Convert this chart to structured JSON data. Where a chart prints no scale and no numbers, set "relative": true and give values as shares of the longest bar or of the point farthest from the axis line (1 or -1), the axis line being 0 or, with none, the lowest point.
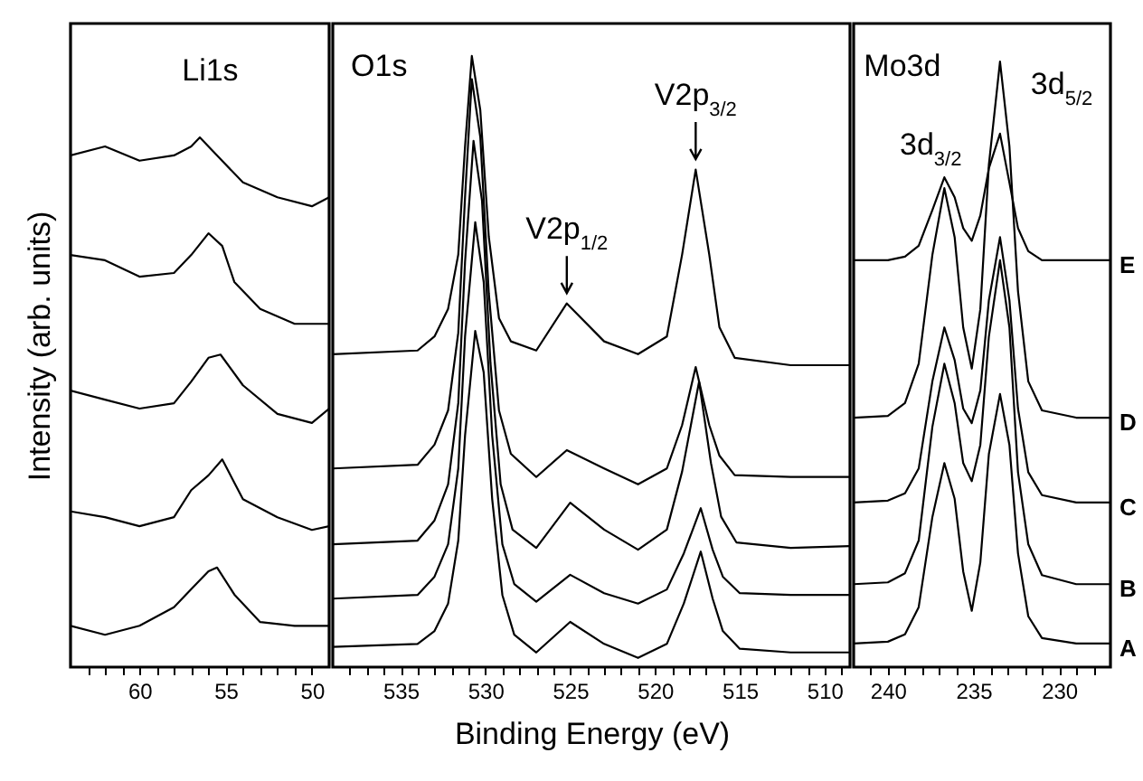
{
  "chart_data": [
    {
      "type": "line",
      "relative": true,
      "ylabel": "Intensity (arb. units)",
      "annotations": [
        "Li1s"
      ],
      "tick_labels": "x",
      "xlim": [
        64,
        49
      ],
      "xticks": [
        {
          "value": 63,
          "label": null
        },
        {
          "value": 62,
          "label": null
        },
        {
          "value": 61,
          "label": null
        },
        60,
        {
          "value": 59,
          "label": null
        },
        {
          "value": 58,
          "label": null
        },
        {
          "value": 57,
          "label": null
        },
        {
          "value": 56,
          "label": null
        },
        55,
        {
          "value": 54,
          "label": null
        },
        {
          "value": 53,
          "label": null
        },
        {
          "value": 52,
          "label": null
        },
        {
          "value": 51,
          "label": null
        },
        50
      ],
      "series": [
        {
          "color": "#000000",
          "x": [
            64,
            62,
            60,
            58,
            57,
            56,
            55.5,
            54.5,
            53,
            51,
            49
          ],
          "values": [
            0.078,
            0.061,
            0.078,
            0.113,
            0.147,
            0.181,
            0.188,
            0.137,
            0.085,
            0.078,
            0.078
          ]
        },
        {
          "color": "#000000",
          "x": [
            64,
            62,
            60,
            58,
            57,
            56,
            55.2,
            54,
            52,
            50,
            49
          ],
          "values": [
            0.294,
            0.283,
            0.266,
            0.283,
            0.334,
            0.362,
            0.392,
            0.317,
            0.283,
            0.259,
            0.266
          ]
        },
        {
          "color": "#000000",
          "x": [
            64,
            62,
            60,
            58,
            57,
            56,
            55.3,
            54,
            52,
            50,
            49
          ],
          "values": [
            0.522,
            0.505,
            0.488,
            0.498,
            0.539,
            0.584,
            0.59,
            0.532,
            0.478,
            0.461,
            0.488
          ]
        },
        {
          "color": "#000000",
          "x": [
            64,
            62,
            60,
            58,
            57,
            56,
            55.2,
            54.5,
            53,
            51,
            49
          ],
          "values": [
            0.778,
            0.768,
            0.737,
            0.744,
            0.778,
            0.819,
            0.795,
            0.727,
            0.676,
            0.648,
            0.648
          ]
        },
        {
          "color": "#000000",
          "x": [
            64,
            62,
            60,
            58,
            57,
            56.5,
            55.5,
            54,
            52,
            50,
            49
          ],
          "values": [
            0.966,
            0.983,
            0.956,
            0.966,
            0.983,
            1,
            0.966,
            0.915,
            0.887,
            0.87,
            0.887
          ]
        }
      ]
    },
    {
      "type": "line",
      "relative": true,
      "xlabel": "Binding Energy (eV)",
      "annotations": [
        "O1s",
        {
          "text": "V2p$_{1/2}$",
          "x": 525.2,
          "y": 0.595
        },
        {
          "text": "V2p$_{3/2}$",
          "x": 517.6,
          "y": 0.814
        }
      ],
      "tick_labels": "x",
      "xlim": [
        539,
        508.5
      ],
      "xticks": [
        {
          "value": 538,
          "label": null
        },
        {
          "value": 537,
          "label": null
        },
        {
          "value": 536,
          "label": null
        },
        535,
        {
          "value": 534,
          "label": null
        },
        {
          "value": 533,
          "label": null
        },
        {
          "value": 532,
          "label": null
        },
        {
          "value": 531,
          "label": null
        },
        530,
        {
          "value": 529,
          "label": null
        },
        {
          "value": 528,
          "label": null
        },
        {
          "value": 527,
          "label": null
        },
        {
          "value": 526,
          "label": null
        },
        525,
        {
          "value": 524,
          "label": null
        },
        {
          "value": 523,
          "label": null
        },
        {
          "value": 522,
          "label": null
        },
        {
          "value": 521,
          "label": null
        },
        520,
        {
          "value": 519,
          "label": null
        },
        {
          "value": 518,
          "label": null
        },
        {
          "value": 517,
          "label": null
        },
        {
          "value": 516,
          "label": null
        },
        515,
        {
          "value": 514,
          "label": null
        },
        {
          "value": 513,
          "label": null
        },
        {
          "value": 512,
          "label": null
        },
        {
          "value": 511,
          "label": null
        },
        510,
        {
          "value": 509,
          "label": null
        }
      ],
      "series": [
        {
          "color": "#000000",
          "x": [
            539,
            534,
            533,
            532.2,
            531.6,
            531.2,
            530.6,
            530.1,
            529.6,
            529,
            528.3,
            527,
            525,
            523,
            521,
            519.3,
            518.3,
            517.3,
            516.6,
            516,
            515,
            512,
            508.5
          ],
          "values": [
            0.033,
            0.038,
            0.059,
            0.104,
            0.207,
            0.379,
            0.55,
            0.482,
            0.275,
            0.118,
            0.053,
            0.024,
            0.074,
            0.038,
            0.015,
            0.038,
            0.104,
            0.189,
            0.112,
            0.059,
            0.03,
            0.024,
            0.024
          ]
        },
        {
          "color": "#000000",
          "x": [
            539,
            534,
            533,
            532.2,
            531.6,
            531.2,
            530.6,
            530.1,
            529.6,
            529,
            528.3,
            527,
            525,
            523,
            521,
            519.3,
            518.3,
            517.3,
            516.6,
            516,
            515,
            512,
            508.5
          ],
          "values": [
            0.112,
            0.118,
            0.148,
            0.201,
            0.325,
            0.541,
            0.728,
            0.63,
            0.379,
            0.201,
            0.136,
            0.107,
            0.151,
            0.121,
            0.104,
            0.127,
            0.186,
            0.26,
            0.192,
            0.148,
            0.121,
            0.118,
            0.118
          ]
        },
        {
          "color": "#000000",
          "x": [
            539,
            534,
            533,
            532.2,
            531.6,
            531.2,
            530.7,
            530.2,
            529.7,
            529.1,
            528.4,
            527,
            525,
            523,
            521,
            519.3,
            518.4,
            517.4,
            516.7,
            516.1,
            515.2,
            512,
            508.5
          ],
          "values": [
            0.201,
            0.207,
            0.24,
            0.299,
            0.432,
            0.663,
            0.861,
            0.763,
            0.497,
            0.299,
            0.225,
            0.195,
            0.269,
            0.225,
            0.192,
            0.225,
            0.32,
            0.467,
            0.334,
            0.246,
            0.204,
            0.195,
            0.198
          ]
        },
        {
          "color": "#000000",
          "x": [
            539,
            534,
            533,
            532.2,
            531.6,
            531.2,
            530.8,
            530.3,
            529.8,
            529.2,
            528.5,
            527,
            525.2,
            523,
            521,
            519.3,
            518.4,
            517.6,
            516.8,
            516.2,
            515.3,
            512,
            508.5
          ],
          "values": [
            0.325,
            0.331,
            0.364,
            0.42,
            0.547,
            0.769,
            0.962,
            0.867,
            0.612,
            0.42,
            0.349,
            0.311,
            0.355,
            0.325,
            0.299,
            0.325,
            0.396,
            0.491,
            0.396,
            0.346,
            0.314,
            0.311,
            0.311
          ]
        },
        {
          "color": "#000000",
          "x": [
            539,
            534,
            533,
            532.2,
            531.6,
            531.2,
            530.8,
            530.3,
            529.8,
            529.2,
            528.5,
            527,
            525.2,
            523,
            521,
            519.3,
            518.4,
            517.6,
            516.8,
            516.2,
            515.3,
            512,
            508.5
          ],
          "values": [
            0.512,
            0.518,
            0.541,
            0.586,
            0.675,
            0.852,
            1,
            0.911,
            0.704,
            0.571,
            0.533,
            0.518,
            0.595,
            0.533,
            0.512,
            0.541,
            0.675,
            0.814,
            0.675,
            0.556,
            0.506,
            0.494,
            0.494
          ]
        }
      ]
    },
    {
      "type": "line",
      "relative": true,
      "annotations": [
        "Mo3d",
        "3d$_{3/2}$",
        "3d$_{5/2}$"
      ],
      "tick_labels": "x",
      "xlim": [
        242,
        227
      ],
      "xticks": [
        {
          "value": 241,
          "label": null
        },
        240,
        {
          "value": 239,
          "label": null
        },
        {
          "value": 238,
          "label": null
        },
        {
          "value": 237,
          "label": null
        },
        {
          "value": 236,
          "label": null
        },
        235,
        {
          "value": 234,
          "label": null
        },
        {
          "value": 233,
          "label": null
        },
        {
          "value": 232,
          "label": null
        },
        {
          "value": 231,
          "label": null
        },
        230,
        {
          "value": 229,
          "label": null
        },
        {
          "value": 228,
          "label": null
        }
      ],
      "x": [
        242,
        240,
        239,
        238.2,
        237.4,
        236.7,
        236.1,
        235.6,
        235.1,
        234.6,
        234.1,
        233.45,
        232.9,
        232.4,
        231.8,
        231,
        229,
        227
      ],
      "series": [
        {
          "name": "A",
          "color": "#000000",
          "values": [
            0.039,
            0.042,
            0.054,
            0.099,
            0.248,
            0.337,
            0.278,
            0.158,
            0.093,
            0.173,
            0.352,
            0.451,
            0.367,
            0.188,
            0.084,
            0.048,
            0.039,
            0.039
          ]
        },
        {
          "name": "B",
          "color": "#000000",
          "values": [
            0.137,
            0.14,
            0.155,
            0.209,
            0.397,
            0.501,
            0.436,
            0.337,
            0.307,
            0.367,
            0.546,
            0.672,
            0.561,
            0.322,
            0.203,
            0.152,
            0.137,
            0.137
          ]
        },
        {
          "name": "C",
          "color": "#000000",
          "values": [
            0.272,
            0.275,
            0.287,
            0.328,
            0.472,
            0.561,
            0.507,
            0.427,
            0.403,
            0.457,
            0.606,
            0.71,
            0.606,
            0.427,
            0.322,
            0.284,
            0.272,
            0.272
          ]
        },
        {
          "name": "D",
          "color": "#000000",
          "values": [
            0.412,
            0.415,
            0.436,
            0.501,
            0.681,
            0.791,
            0.71,
            0.561,
            0.493,
            0.591,
            0.83,
            1,
            0.86,
            0.621,
            0.472,
            0.424,
            0.412,
            0.412
          ]
        },
        {
          "name": "E",
          "color": "#000000",
          "values": [
            0.672,
            0.672,
            0.678,
            0.696,
            0.755,
            0.809,
            0.776,
            0.725,
            0.704,
            0.746,
            0.824,
            0.881,
            0.8,
            0.725,
            0.687,
            0.672,
            0.672,
            0.672
          ]
        }
      ]
    }
  ]
}
